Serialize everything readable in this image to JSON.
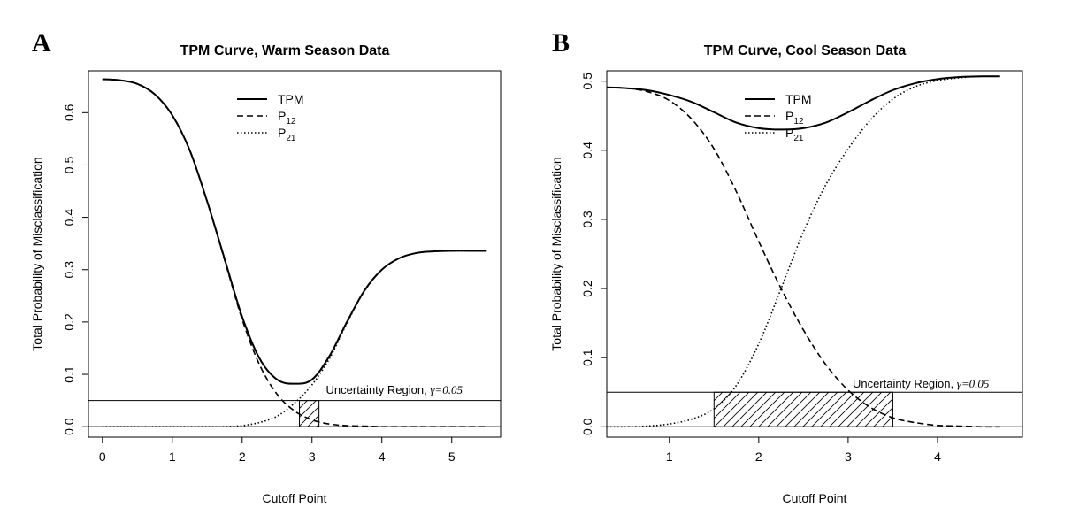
{
  "chart_data": [
    {
      "panel_letter": "A",
      "type": "line",
      "title": "TPM Curve, Warm Season Data",
      "xlabel": "Cutoff Point",
      "ylabel": "Total Probability of Misclassification",
      "xlim": [
        -0.2,
        5.7
      ],
      "ylim": [
        -0.02,
        0.68
      ],
      "xticks": [
        0,
        1,
        2,
        3,
        4,
        5
      ],
      "yticks": [
        0.0,
        0.1,
        0.2,
        0.3,
        0.4,
        0.5,
        0.6
      ],
      "legend": {
        "position": "top-center",
        "entries": [
          {
            "label": "TPM",
            "sub": "",
            "style": "solid"
          },
          {
            "label": "P",
            "sub": "12",
            "style": "dashed"
          },
          {
            "label": "P",
            "sub": "21",
            "style": "dotted"
          }
        ]
      },
      "x": [
        0.0,
        0.25,
        0.5,
        0.75,
        1.0,
        1.25,
        1.5,
        1.75,
        2.0,
        2.25,
        2.5,
        2.75,
        3.0,
        3.25,
        3.5,
        3.75,
        4.0,
        4.25,
        4.5,
        4.75,
        5.0,
        5.25,
        5.5
      ],
      "series": [
        {
          "name": "TPM",
          "style": "solid",
          "values": [
            0.664,
            0.662,
            0.655,
            0.635,
            0.595,
            0.528,
            0.43,
            0.32,
            0.21,
            0.13,
            0.09,
            0.082,
            0.09,
            0.135,
            0.2,
            0.26,
            0.3,
            0.322,
            0.332,
            0.335,
            0.336,
            0.336,
            0.336
          ]
        },
        {
          "name": "P12",
          "style": "dashed",
          "values": [
            0.664,
            0.662,
            0.655,
            0.635,
            0.595,
            0.528,
            0.43,
            0.318,
            0.205,
            0.118,
            0.062,
            0.03,
            0.013,
            0.005,
            0.002,
            0.001,
            0.0,
            0.0,
            0.0,
            0.0,
            0.0,
            0.0,
            0.0
          ]
        },
        {
          "name": "P21",
          "style": "dotted",
          "values": [
            0.0,
            0.0,
            0.0,
            0.0,
            0.0,
            0.0,
            0.0,
            0.0,
            0.002,
            0.008,
            0.02,
            0.045,
            0.08,
            0.13,
            0.198,
            0.259,
            0.3,
            0.322,
            0.332,
            0.335,
            0.336,
            0.336,
            0.336
          ]
        }
      ],
      "hlines": [
        0.0,
        0.05
      ],
      "uncertainty_region": {
        "x_range": [
          2.82,
          3.1
        ],
        "y_range": [
          0.0,
          0.05
        ]
      },
      "annotation": {
        "text": "Uncertainty Region, ",
        "gamma": "γ=0.05",
        "x": 3.2,
        "y": 0.063
      }
    },
    {
      "panel_letter": "B",
      "type": "line",
      "title": "TPM Curve, Cool Season Data",
      "xlabel": "Cutoff Point",
      "ylabel": "Total Probability of Misclassification",
      "xlim": [
        0.3,
        4.95
      ],
      "ylim": [
        -0.015,
        0.515
      ],
      "xticks": [
        1,
        2,
        3,
        4
      ],
      "yticks": [
        0.0,
        0.1,
        0.2,
        0.3,
        0.4,
        0.5
      ],
      "legend": {
        "position": "top-center",
        "entries": [
          {
            "label": "TPM",
            "sub": "",
            "style": "solid"
          },
          {
            "label": "P",
            "sub": "12",
            "style": "dashed"
          },
          {
            "label": "P",
            "sub": "21",
            "style": "dotted"
          }
        ]
      },
      "x": [
        0.3,
        0.5,
        0.75,
        1.0,
        1.25,
        1.5,
        1.75,
        2.0,
        2.25,
        2.5,
        2.75,
        3.0,
        3.25,
        3.5,
        3.75,
        4.0,
        4.25,
        4.5,
        4.7
      ],
      "series": [
        {
          "name": "TPM",
          "style": "solid",
          "values": [
            0.491,
            0.49,
            0.487,
            0.48,
            0.47,
            0.455,
            0.44,
            0.432,
            0.43,
            0.432,
            0.44,
            0.455,
            0.472,
            0.487,
            0.497,
            0.503,
            0.506,
            0.507,
            0.507
          ]
        },
        {
          "name": "P12",
          "style": "dashed",
          "values": [
            0.491,
            0.49,
            0.485,
            0.472,
            0.445,
            0.402,
            0.34,
            0.268,
            0.2,
            0.14,
            0.09,
            0.053,
            0.028,
            0.013,
            0.006,
            0.002,
            0.001,
            0.0,
            0.0
          ]
        },
        {
          "name": "P21",
          "style": "dotted",
          "values": [
            0.0,
            0.0,
            0.001,
            0.004,
            0.011,
            0.026,
            0.06,
            0.12,
            0.2,
            0.282,
            0.35,
            0.402,
            0.444,
            0.474,
            0.492,
            0.501,
            0.505,
            0.507,
            0.507
          ]
        }
      ],
      "hlines": [
        0.0,
        0.05
      ],
      "uncertainty_region": {
        "x_range": [
          1.5,
          3.5
        ],
        "y_range": [
          0.0,
          0.05
        ]
      },
      "annotation": {
        "text": "Uncertainty Region, ",
        "gamma": "γ=0.05",
        "x": 3.05,
        "y": 0.057
      }
    }
  ]
}
